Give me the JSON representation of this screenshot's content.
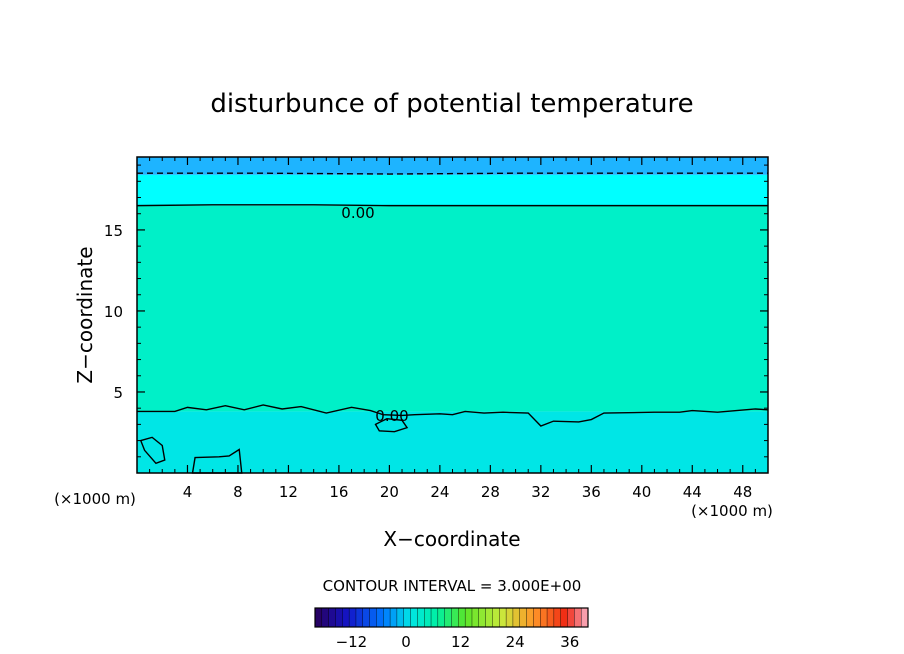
{
  "chart_data": {
    "type": "heatmap",
    "title": "disturbunce of potential temperature",
    "xlabel": "X−coordinate",
    "ylabel": "Z−coordinate",
    "x_unit_left": "(×1000 m)",
    "x_unit_right": "(×1000 m)",
    "xlim": [
      0,
      50
    ],
    "ylim": [
      0,
      19.5
    ],
    "xticks": [
      4,
      8,
      12,
      16,
      20,
      24,
      28,
      32,
      36,
      40,
      44,
      48
    ],
    "xtick_labels": [
      "4",
      "8",
      "12",
      "16",
      "20",
      "24",
      "28",
      "32",
      "36",
      "40",
      "44",
      "48"
    ],
    "yticks": [
      5,
      10,
      15
    ],
    "ytick_labels": [
      "5",
      "10",
      "15"
    ],
    "contour_interval_text": "CONTOUR INTERVAL = 3.000E+00",
    "contour_labels": [
      "0.00",
      "0.00"
    ],
    "fill_bands": [
      {
        "z_from": 0,
        "z_to": 3.8,
        "color": "#00e6e6"
      },
      {
        "z_from": 3.8,
        "z_to": 16.5,
        "color": "#00f0c8"
      },
      {
        "z_from": 16.5,
        "z_to": 18.4,
        "color": "#00ffff"
      },
      {
        "z_from": 18.4,
        "z_to": 19.5,
        "color": "#1eb4ff"
      }
    ],
    "contour_zero_upper": {
      "points": [
        [
          0,
          16.5
        ],
        [
          6,
          16.55
        ],
        [
          14,
          16.55
        ],
        [
          20,
          16.5
        ],
        [
          30,
          16.5
        ],
        [
          40,
          16.5
        ],
        [
          50,
          16.5
        ]
      ]
    },
    "contour_zero_lower": {
      "points": [
        [
          0,
          3.8
        ],
        [
          3,
          3.8
        ],
        [
          4,
          4.05
        ],
        [
          5.5,
          3.9
        ],
        [
          7,
          4.15
        ],
        [
          8.5,
          3.9
        ],
        [
          10,
          4.2
        ],
        [
          11.5,
          3.95
        ],
        [
          13,
          4.1
        ],
        [
          15,
          3.7
        ],
        [
          17,
          4.05
        ],
        [
          18.5,
          3.85
        ],
        [
          19.5,
          3.6
        ],
        [
          21,
          3.55
        ],
        [
          22,
          3.6
        ],
        [
          24,
          3.65
        ],
        [
          25,
          3.6
        ],
        [
          26,
          3.8
        ],
        [
          27.5,
          3.7
        ],
        [
          29,
          3.75
        ],
        [
          31,
          3.7
        ],
        [
          32,
          2.9
        ],
        [
          33,
          3.2
        ],
        [
          35,
          3.15
        ],
        [
          36,
          3.3
        ],
        [
          37,
          3.7
        ],
        [
          41,
          3.75
        ],
        [
          43,
          3.75
        ],
        [
          44,
          3.85
        ],
        [
          46,
          3.75
        ],
        [
          49,
          3.95
        ],
        [
          50,
          3.9
        ]
      ]
    },
    "contour_negative": {
      "points": [
        [
          0,
          18.5
        ],
        [
          10,
          18.5
        ],
        [
          20,
          18.45
        ],
        [
          30,
          18.5
        ],
        [
          40,
          18.5
        ],
        [
          50,
          18.5
        ]
      ]
    },
    "colorbar": {
      "range": [
        -20,
        40
      ],
      "tick_values": [
        -12,
        0,
        12,
        24,
        36
      ],
      "tick_labels": [
        "−12",
        "0",
        "12",
        "24",
        "36"
      ]
    }
  }
}
